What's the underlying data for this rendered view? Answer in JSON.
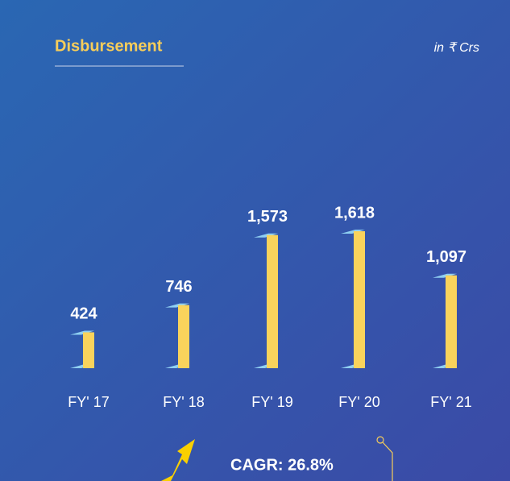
{
  "chart_data": {
    "type": "bar",
    "title": "Disbursement",
    "subtitle": "in ₹ Crs",
    "categories": [
      "FY' 17",
      "FY' 18",
      "FY' 19",
      "FY' 20",
      "FY' 21"
    ],
    "values": [
      424,
      746,
      1573,
      1618,
      1097
    ],
    "value_labels": [
      "424",
      "746",
      "1,573",
      "1,618",
      "1,097"
    ],
    "color": "#f9d35c",
    "annotation": "CAGR: 26.8%"
  }
}
